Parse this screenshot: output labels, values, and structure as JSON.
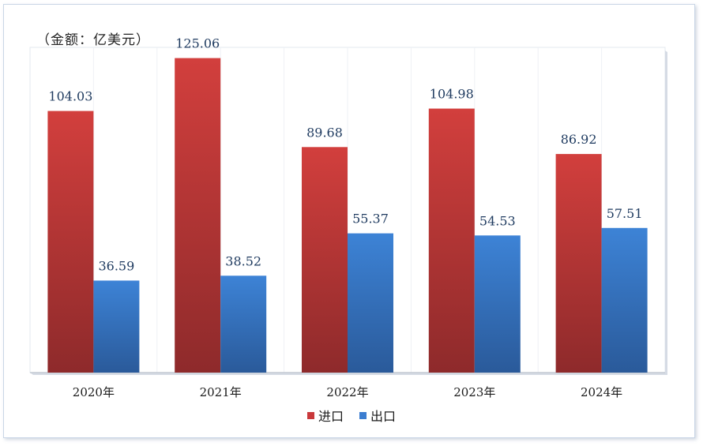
{
  "chart_data": {
    "type": "bar",
    "unit_label": "（金额：亿美元）",
    "categories": [
      "2020年",
      "2021年",
      "2022年",
      "2023年",
      "2024年"
    ],
    "series": [
      {
        "name": "进口",
        "color": "#c9393b",
        "values": [
          104.03,
          125.06,
          89.68,
          104.98,
          86.92
        ]
      },
      {
        "name": "出口",
        "color": "#3b7dd0",
        "values": [
          36.59,
          38.52,
          55.37,
          54.53,
          57.51
        ]
      }
    ],
    "ylim": [
      0,
      140
    ],
    "grid": false,
    "legend_position": "bottom"
  }
}
